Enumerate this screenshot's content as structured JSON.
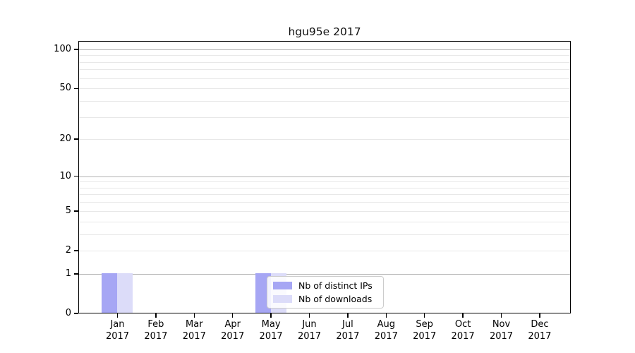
{
  "figure": {
    "title": "hgu95e 2017"
  },
  "chart_data": {
    "type": "bar",
    "title": "hgu95e 2017",
    "x_categories": [
      {
        "month": "Jan",
        "year": "2017"
      },
      {
        "month": "Feb",
        "year": "2017"
      },
      {
        "month": "Mar",
        "year": "2017"
      },
      {
        "month": "Apr",
        "year": "2017"
      },
      {
        "month": "May",
        "year": "2017"
      },
      {
        "month": "Jun",
        "year": "2017"
      },
      {
        "month": "Jul",
        "year": "2017"
      },
      {
        "month": "Aug",
        "year": "2017"
      },
      {
        "month": "Sep",
        "year": "2017"
      },
      {
        "month": "Oct",
        "year": "2017"
      },
      {
        "month": "Nov",
        "year": "2017"
      },
      {
        "month": "Dec",
        "year": "2017"
      }
    ],
    "series": [
      {
        "name": "Nb of distinct IPs",
        "color": "#a6a6f4",
        "values": [
          1,
          0,
          0,
          0,
          1,
          0,
          0,
          0,
          0,
          0,
          0,
          0
        ]
      },
      {
        "name": "Nb of downloads",
        "color": "#dcdcf9",
        "values": [
          1,
          0,
          0,
          0,
          1,
          0,
          0,
          0,
          0,
          0,
          0,
          0
        ]
      }
    ],
    "yscale": "log1p",
    "ylim": [
      0,
      116
    ],
    "yticks": [
      0,
      1,
      2,
      5,
      10,
      20,
      50,
      100
    ],
    "grid_major": [
      1,
      10,
      100
    ],
    "grid_minor": [
      2,
      3,
      4,
      6,
      7,
      8,
      9,
      5,
      20,
      30,
      40,
      50,
      60,
      70,
      80,
      90
    ],
    "legend_position": "lower center-left inside plot"
  },
  "legend": {
    "items": [
      {
        "label": "Nb of distinct IPs",
        "color": "#a6a6f4"
      },
      {
        "label": "Nb of downloads",
        "color": "#dcdcf9"
      }
    ]
  },
  "colors": {
    "grid_major": "#b3b3b3",
    "grid_minor": "#e8e8e8",
    "spine": "#000000",
    "text": "#000000",
    "legend_border": "#cccccc"
  }
}
